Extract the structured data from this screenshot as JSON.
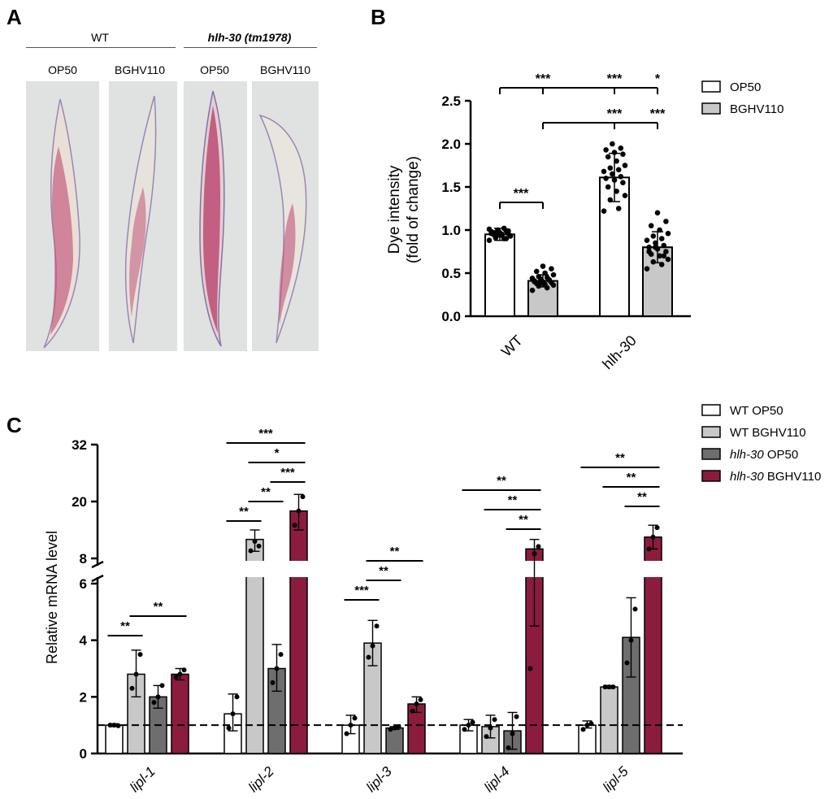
{
  "panelA": {
    "label": "A",
    "wt_header": "WT",
    "mutant_header": "hlh-30 (tm1978)",
    "columns": [
      "OP50",
      "BGHV110",
      "OP50",
      "BGHV110"
    ]
  },
  "colors": {
    "white_bar": "#ffffff",
    "light_gray": "#c8c8c8",
    "dark_gray": "#6e6e6e",
    "crimson": "#8c1c3e",
    "stain": "#c2547a",
    "photo_bg": "#dfe2e1"
  },
  "chart_data": [
    {
      "id": "B",
      "panel_label": "B",
      "type": "bar",
      "ylabel_line1": "Dye intensity",
      "ylabel_line2": "(fold of change)",
      "ylim": [
        0,
        2.5
      ],
      "yticks": [
        "0.0",
        "0.5",
        "1.0",
        "1.5",
        "2.0",
        "2.5"
      ],
      "categories": [
        "WT",
        "hlh-30"
      ],
      "series": [
        {
          "name": "OP50",
          "values": [
            0.95,
            1.61
          ],
          "err": [
            0.07,
            0.28
          ]
        },
        {
          "name": "BGHV110",
          "values": [
            0.41,
            0.8
          ],
          "err": [
            0.07,
            0.18
          ]
        }
      ],
      "legend": [
        "OP50",
        "BGHV110"
      ],
      "legend_position": "top-right",
      "dots": [
        [
          0.88,
          0.9,
          0.92,
          0.93,
          0.94,
          0.95,
          0.96,
          0.97,
          0.98,
          0.99,
          1.0,
          1.01,
          1.02,
          0.91,
          0.93,
          0.95,
          0.97,
          0.99,
          0.94,
          0.96,
          0.9,
          0.98
        ],
        [
          0.3,
          0.33,
          0.35,
          0.36,
          0.37,
          0.38,
          0.39,
          0.4,
          0.41,
          0.42,
          0.43,
          0.44,
          0.45,
          0.46,
          0.48,
          0.5,
          0.52,
          0.55,
          0.58,
          0.4,
          0.42,
          0.38
        ],
        [
          1.22,
          1.25,
          1.35,
          1.4,
          1.45,
          1.5,
          1.55,
          1.58,
          1.6,
          1.62,
          1.65,
          1.68,
          1.7,
          1.72,
          1.75,
          1.8,
          1.85,
          1.88,
          1.9,
          1.93,
          1.95,
          2.0
        ],
        [
          0.55,
          0.6,
          0.63,
          0.66,
          0.7,
          0.72,
          0.75,
          0.78,
          0.8,
          0.82,
          0.85,
          0.88,
          0.9,
          0.93,
          0.96,
          1.0,
          1.05,
          1.1,
          1.2,
          0.75,
          0.7,
          0.8
        ]
      ],
      "significance": [
        {
          "label": "***",
          "a": 0,
          "b": 2
        },
        {
          "label": "***",
          "a": 1,
          "b": 2
        },
        {
          "label": "*",
          "a": 2,
          "b": 3
        },
        {
          "label": "***",
          "a": 1,
          "b": 2
        },
        {
          "label": "***",
          "a": 2,
          "b": 3
        },
        {
          "label": "***",
          "a": 0,
          "b": 1
        }
      ]
    },
    {
      "id": "C",
      "panel_label": "C",
      "type": "bar",
      "ylabel": "Relative mRNA level",
      "y_axis_break": true,
      "lower_range": [
        0,
        6
      ],
      "upper_range": [
        8,
        32
      ],
      "yticks": [
        "0",
        "2",
        "4",
        "6",
        "8",
        "20",
        "32"
      ],
      "reference_line": 1,
      "categories": [
        "lipl-1",
        "lipl-2",
        "lipl-3",
        "lipl-4",
        "lipl-5"
      ],
      "series": [
        {
          "name_prefix": "WT",
          "name_suffix": " OP50",
          "values": [
            1.0,
            1.4,
            1.0,
            1.0,
            1.0
          ],
          "err_high": [
            1.05,
            2.1,
            1.35,
            1.2,
            1.15
          ],
          "err_low": [
            0.95,
            0.8,
            0.7,
            0.8,
            0.9
          ]
        },
        {
          "name_prefix": "WT",
          "name_suffix": " BGHV110",
          "values": [
            2.8,
            12.0,
            3.9,
            0.95,
            2.35
          ],
          "err_high": [
            3.65,
            14.0,
            4.7,
            1.35,
            2.4
          ],
          "err_low": [
            2.0,
            9.5,
            3.1,
            0.55,
            2.3
          ]
        },
        {
          "name_prefix": "hlh-30",
          "name_suffix": " OP50",
          "values": [
            2.0,
            3.0,
            0.9,
            0.8,
            4.1
          ],
          "err_high": [
            2.4,
            3.85,
            0.95,
            1.45,
            5.5
          ],
          "err_low": [
            1.6,
            2.2,
            0.85,
            0.15,
            2.7
          ]
        },
        {
          "name_prefix": "hlh-30",
          "name_suffix": " BGHV110",
          "values": [
            2.8,
            18.0,
            1.75,
            10.0,
            12.5
          ],
          "err_high": [
            3.0,
            21.5,
            2.0,
            12.0,
            15.0
          ],
          "err_low": [
            2.6,
            14.0,
            1.45,
            4.5,
            10.0
          ]
        }
      ],
      "points": [
        [
          [
            1.0,
            1.0,
            0.98
          ],
          [
            2.3,
            2.8,
            3.5
          ],
          [
            1.8,
            2.0,
            2.4
          ],
          [
            2.7,
            2.8,
            2.95
          ]
        ],
        [
          [
            0.9,
            1.4,
            2.0
          ],
          [
            9.6,
            11.6,
            10.6
          ],
          [
            2.5,
            3.0,
            3.5
          ],
          [
            15.0,
            18.0,
            21.0
          ]
        ],
        [
          [
            0.7,
            1.0,
            1.25
          ],
          [
            3.4,
            3.8,
            4.5
          ],
          [
            0.85,
            0.9,
            0.95
          ],
          [
            1.5,
            1.75,
            1.9
          ]
        ],
        [
          [
            0.85,
            1.0,
            1.1
          ],
          [
            0.6,
            0.9,
            1.2
          ],
          [
            0.2,
            0.7,
            1.3
          ],
          [
            3.0,
            9.0,
            10.5
          ]
        ],
        [
          [
            0.85,
            1.0,
            1.05
          ],
          [
            2.35,
            2.35,
            2.35
          ],
          [
            3.2,
            4.0,
            5.1
          ],
          [
            10.0,
            12.5,
            14.5
          ]
        ]
      ],
      "significance": [
        {
          "label": "**",
          "group": 0,
          "a": 1,
          "b": 3,
          "level": 0
        },
        {
          "label": "**",
          "group": 0,
          "a": 0,
          "b": 1,
          "level": 1
        },
        {
          "label": "***",
          "group": 1,
          "a": 0,
          "b": 3,
          "level": 0
        },
        {
          "label": "*",
          "group": 1,
          "a": 1,
          "b": 3,
          "level": 1
        },
        {
          "label": "***",
          "group": 1,
          "a": 2,
          "b": 3,
          "level": 2
        },
        {
          "label": "**",
          "group": 1,
          "a": 1,
          "b": 2,
          "level": 3
        },
        {
          "label": "**",
          "group": 1,
          "a": 0,
          "b": 1,
          "level": 4
        },
        {
          "label": "**",
          "group": 2,
          "a": 1,
          "b": 3,
          "level": 0
        },
        {
          "label": "**",
          "group": 2,
          "a": 1,
          "b": 2,
          "level": 1
        },
        {
          "label": "***",
          "group": 2,
          "a": 0,
          "b": 1,
          "level": 2
        },
        {
          "label": "**",
          "group": 3,
          "a": 0,
          "b": 3,
          "level": 0
        },
        {
          "label": "**",
          "group": 3,
          "a": 1,
          "b": 3,
          "level": 1
        },
        {
          "label": "**",
          "group": 3,
          "a": 2,
          "b": 3,
          "level": 2
        },
        {
          "label": "**",
          "group": 4,
          "a": 0,
          "b": 3,
          "level": 0
        },
        {
          "label": "**",
          "group": 4,
          "a": 1,
          "b": 3,
          "level": 1
        },
        {
          "label": "**",
          "group": 4,
          "a": 2,
          "b": 3,
          "level": 2
        }
      ]
    }
  ]
}
